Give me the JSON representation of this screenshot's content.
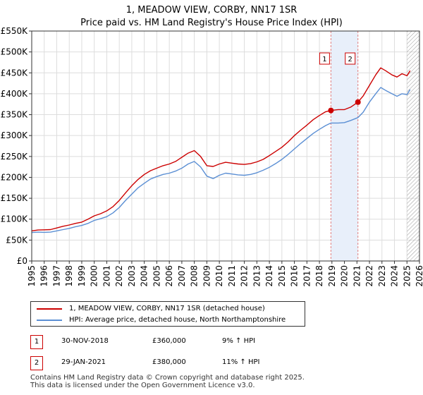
{
  "chart_data": {
    "type": "line",
    "title": "1, MEADOW VIEW, CORBY, NN17 1SR",
    "subtitle": "Price paid vs. HM Land Registry's House Price Index (HPI)",
    "xlim": [
      1995,
      2026
    ],
    "ylim": [
      0,
      550000
    ],
    "y_ticks": [
      0,
      50000,
      100000,
      150000,
      200000,
      250000,
      300000,
      350000,
      400000,
      450000,
      500000,
      550000
    ],
    "y_tick_labels": [
      "£0",
      "£50K",
      "£100K",
      "£150K",
      "£200K",
      "£250K",
      "£300K",
      "£350K",
      "£400K",
      "£450K",
      "£500K",
      "£550K"
    ],
    "x_ticks": [
      1995,
      1996,
      1997,
      1998,
      1999,
      2000,
      2001,
      2002,
      2003,
      2004,
      2005,
      2006,
      2007,
      2008,
      2009,
      2010,
      2011,
      2012,
      2013,
      2014,
      2015,
      2016,
      2017,
      2018,
      2019,
      2020,
      2021,
      2022,
      2023,
      2024,
      2025,
      2026
    ],
    "x_tick_labels": [
      "1995",
      "1996",
      "1997",
      "1998",
      "1999",
      "2000",
      "2001",
      "2002",
      "2003",
      "2004",
      "2005",
      "2006",
      "2007",
      "2008",
      "2009",
      "2010",
      "2011",
      "2012",
      "2013",
      "2014",
      "2015",
      "2016",
      "2017",
      "2018",
      "2019",
      "2020",
      "2021",
      "2022",
      "2023",
      "2024",
      "2025",
      "2026"
    ],
    "grid": true,
    "series": [
      {
        "name": "1, MEADOW VIEW, CORBY, NN17 1SR (detached house)",
        "color": "#cc0000",
        "x": [
          1995.0,
          1995.5,
          1996.0,
          1996.5,
          1997.0,
          1997.5,
          1998.0,
          1998.5,
          1999.0,
          1999.5,
          2000.0,
          2000.5,
          2001.0,
          2001.5,
          2002.0,
          2002.5,
          2003.0,
          2003.5,
          2004.0,
          2004.5,
          2005.0,
          2005.5,
          2006.0,
          2006.5,
          2007.0,
          2007.5,
          2008.0,
          2008.5,
          2009.0,
          2009.5,
          2010.0,
          2010.5,
          2011.0,
          2011.5,
          2012.0,
          2012.5,
          2013.0,
          2013.5,
          2014.0,
          2014.5,
          2015.0,
          2015.5,
          2016.0,
          2016.5,
          2017.0,
          2017.5,
          2018.0,
          2018.5,
          2018.92,
          2019.5,
          2020.0,
          2020.5,
          2021.08,
          2021.5,
          2022.0,
          2022.5,
          2022.9,
          2023.3,
          2023.8,
          2024.2,
          2024.6,
          2025.0,
          2025.25
        ],
        "values": [
          72000,
          74000,
          74500,
          75000,
          79000,
          83000,
          86000,
          90000,
          93000,
          100000,
          108000,
          113000,
          120000,
          130000,
          145000,
          163000,
          180000,
          195000,
          207000,
          216000,
          222000,
          228000,
          232000,
          238000,
          248000,
          258000,
          264000,
          250000,
          228000,
          226000,
          232000,
          236000,
          234000,
          232000,
          231000,
          233000,
          237000,
          243000,
          252000,
          262000,
          272000,
          285000,
          300000,
          313000,
          325000,
          338000,
          348000,
          357000,
          360000,
          362000,
          362000,
          368000,
          380000,
          395000,
          420000,
          445000,
          462000,
          455000,
          445000,
          440000,
          448000,
          443000,
          455000
        ]
      },
      {
        "name": "HPI: Average price, detached house, North Northamptonshire",
        "color": "#5b8fd4",
        "x": [
          1995.0,
          1995.5,
          1996.0,
          1996.5,
          1997.0,
          1997.5,
          1998.0,
          1998.5,
          1999.0,
          1999.5,
          2000.0,
          2000.5,
          2001.0,
          2001.5,
          2002.0,
          2002.5,
          2003.0,
          2003.5,
          2004.0,
          2004.5,
          2005.0,
          2005.5,
          2006.0,
          2006.5,
          2007.0,
          2007.5,
          2008.0,
          2008.5,
          2009.0,
          2009.5,
          2010.0,
          2010.5,
          2011.0,
          2011.5,
          2012.0,
          2012.5,
          2013.0,
          2013.5,
          2014.0,
          2014.5,
          2015.0,
          2015.5,
          2016.0,
          2016.5,
          2017.0,
          2017.5,
          2018.0,
          2018.5,
          2018.92,
          2019.5,
          2020.0,
          2020.5,
          2021.08,
          2021.5,
          2022.0,
          2022.5,
          2022.9,
          2023.3,
          2023.8,
          2024.2,
          2024.6,
          2025.0,
          2025.25
        ],
        "values": [
          68000,
          69000,
          68500,
          69000,
          72000,
          75000,
          78000,
          82000,
          85000,
          90000,
          97000,
          101000,
          106000,
          115000,
          128000,
          145000,
          160000,
          175000,
          186000,
          196000,
          202000,
          207000,
          210000,
          215000,
          222000,
          232000,
          238000,
          225000,
          203000,
          197000,
          205000,
          210000,
          208000,
          206000,
          205000,
          207000,
          211000,
          217000,
          224000,
          233000,
          243000,
          255000,
          268000,
          281000,
          293000,
          305000,
          315000,
          324000,
          330000,
          330000,
          331000,
          336000,
          343000,
          356000,
          380000,
          400000,
          415000,
          408000,
          400000,
          394000,
          400000,
          398000,
          410000
        ]
      }
    ],
    "annotations": [
      {
        "label": "1",
        "x": 2018.92,
        "y": 360000,
        "date": "30-NOV-2018",
        "price": "£360,000",
        "hpi": "9% ↑ HPI"
      },
      {
        "label": "2",
        "x": 2021.08,
        "y": 380000,
        "date": "29-JAN-2021",
        "price": "£380,000",
        "hpi": "11% ↑ HPI"
      }
    ],
    "highlight_band": [
      2018.92,
      2021.08
    ],
    "hatched_from": 2025.0,
    "legend_position": "bottom-left"
  },
  "footer": {
    "line1": "Contains HM Land Registry data © Crown copyright and database right 2025.",
    "line2": "This data is licensed under the Open Government Licence v3.0."
  },
  "colors": {
    "band": "#e8effa",
    "grid": "#dddddd",
    "dashed_marker": "#e08080"
  }
}
